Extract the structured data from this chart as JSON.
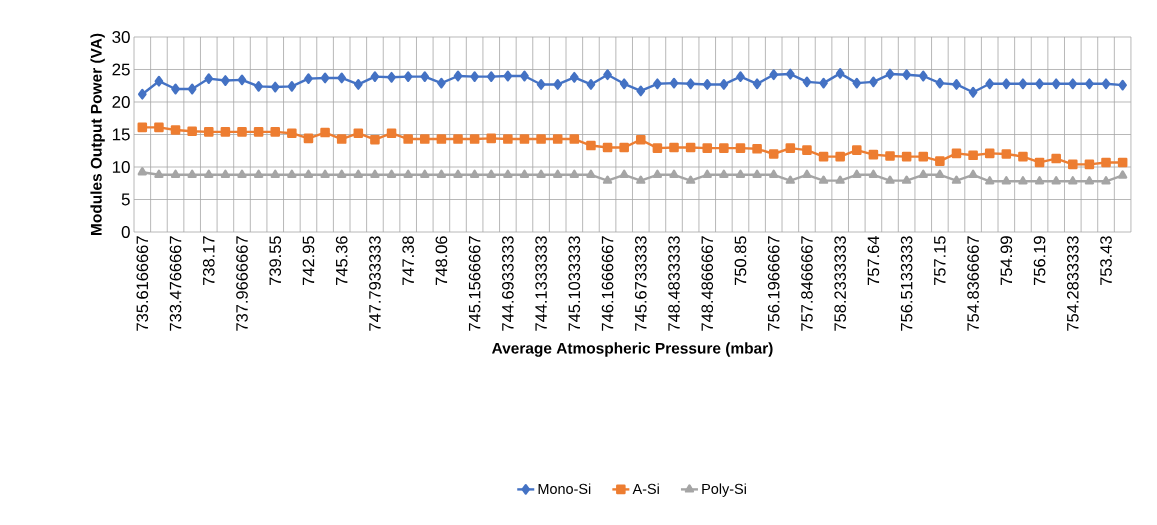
{
  "chart_data": {
    "type": "line",
    "xlabel": "Average Atmospheric Pressure (mbar)",
    "ylabel": "Modules Output Power (VA)",
    "categories": [
      "735.6166667",
      null,
      "733.4766667",
      null,
      "738.17",
      null,
      "737.9666667",
      null,
      "739.55",
      null,
      "742.95",
      null,
      "745.36",
      null,
      "747.7933333",
      null,
      "747.38",
      null,
      "748.06",
      null,
      "745.1566667",
      null,
      "744.6933333",
      null,
      "744.1333333",
      null,
      "745.1033333",
      null,
      "746.1666667",
      null,
      "745.6733333",
      null,
      "748.4833333",
      null,
      "748.4866667",
      null,
      "750.85",
      null,
      "756.1966667",
      null,
      "757.8466667",
      null,
      "758.2333333",
      null,
      "757.64",
      null,
      "756.5133333",
      null,
      "757.15",
      null,
      "754.8366667",
      null,
      "754.99",
      null,
      "756.19",
      null,
      "754.2833333",
      null,
      "753.43",
      null
    ],
    "series": [
      {
        "name": "Mono-Si",
        "color": "#4472c4",
        "marker": "diamond",
        "values": [
          21.2,
          23.2,
          22.0,
          22.0,
          23.6,
          23.3,
          23.4,
          22.4,
          22.3,
          22.4,
          23.6,
          23.7,
          23.7,
          22.7,
          23.9,
          23.8,
          23.9,
          23.9,
          22.9,
          24.0,
          23.9,
          23.9,
          24.0,
          24.0,
          22.7,
          22.7,
          23.8,
          22.7,
          24.2,
          22.8,
          21.7,
          22.8,
          22.9,
          22.8,
          22.7,
          22.7,
          23.9,
          22.8,
          24.2,
          24.3,
          23.1,
          22.9,
          24.4,
          22.9,
          23.1,
          24.3,
          24.2,
          24.0,
          22.9,
          22.7,
          21.5,
          22.8,
          22.8,
          22.8,
          22.8,
          22.8,
          22.8,
          22.8,
          22.8,
          22.6
        ]
      },
      {
        "name": "A-Si",
        "color": "#ed7d31",
        "marker": "square",
        "values": [
          16.1,
          16.1,
          15.7,
          15.5,
          15.4,
          15.4,
          15.4,
          15.4,
          15.4,
          15.2,
          14.4,
          15.3,
          14.3,
          15.2,
          14.2,
          15.2,
          14.3,
          14.3,
          14.3,
          14.3,
          14.3,
          14.4,
          14.3,
          14.3,
          14.3,
          14.3,
          14.3,
          13.3,
          13.0,
          13.0,
          14.2,
          12.9,
          13.0,
          13.0,
          12.9,
          12.9,
          12.9,
          12.8,
          12.0,
          12.9,
          12.6,
          11.6,
          11.6,
          12.6,
          11.9,
          11.7,
          11.6,
          11.6,
          10.9,
          12.1,
          11.8,
          12.1,
          12.0,
          11.6,
          10.7,
          11.3,
          10.4,
          10.4,
          10.7,
          10.7
        ]
      },
      {
        "name": "Poly-Si",
        "color": "#a5a5a5",
        "marker": "triangle",
        "values": [
          9.2,
          8.8,
          8.8,
          8.8,
          8.8,
          8.8,
          8.8,
          8.8,
          8.8,
          8.8,
          8.8,
          8.8,
          8.8,
          8.8,
          8.8,
          8.8,
          8.8,
          8.8,
          8.8,
          8.8,
          8.8,
          8.8,
          8.8,
          8.8,
          8.8,
          8.8,
          8.8,
          8.8,
          7.9,
          8.8,
          7.9,
          8.8,
          8.8,
          7.9,
          8.8,
          8.8,
          8.8,
          8.8,
          8.8,
          7.9,
          8.8,
          7.9,
          7.9,
          8.8,
          8.8,
          7.9,
          7.9,
          8.8,
          8.8,
          7.9,
          8.8,
          7.8,
          7.8,
          7.8,
          7.8,
          7.8,
          7.8,
          7.8,
          7.8,
          8.7
        ]
      }
    ],
    "ylim": [
      0,
      30
    ],
    "yticks": [
      0,
      5,
      10,
      15,
      20,
      25,
      30
    ],
    "grid": true,
    "legend": "bottom",
    "line_style": "solid"
  }
}
